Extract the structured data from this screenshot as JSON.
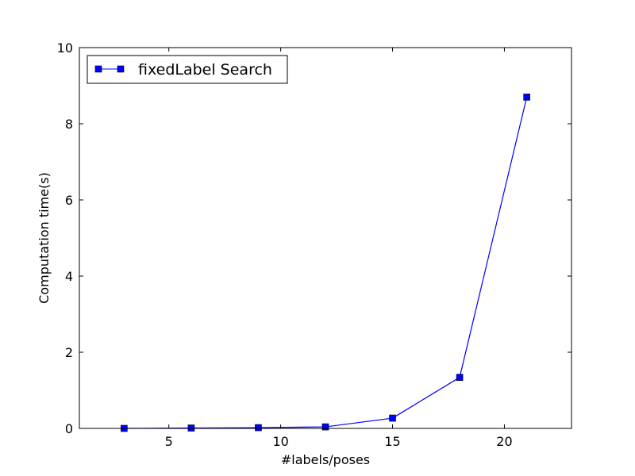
{
  "chart_data": {
    "type": "line",
    "title": "",
    "xlabel": "#labels/poses",
    "ylabel": "Computation time(s)",
    "xlim": [
      1,
      23
    ],
    "ylim": [
      0,
      10
    ],
    "x_ticks": [
      5,
      10,
      15,
      20
    ],
    "y_ticks": [
      0,
      2,
      4,
      6,
      8,
      10
    ],
    "grid": false,
    "legend_position": "upper-left",
    "series": [
      {
        "name": "fixedLabel Search",
        "color": "#0000ff",
        "marker": "square",
        "x": [
          3,
          6,
          9,
          12,
          15,
          18,
          21
        ],
        "y": [
          0.0,
          0.01,
          0.02,
          0.04,
          0.27,
          1.34,
          8.7
        ]
      }
    ]
  }
}
